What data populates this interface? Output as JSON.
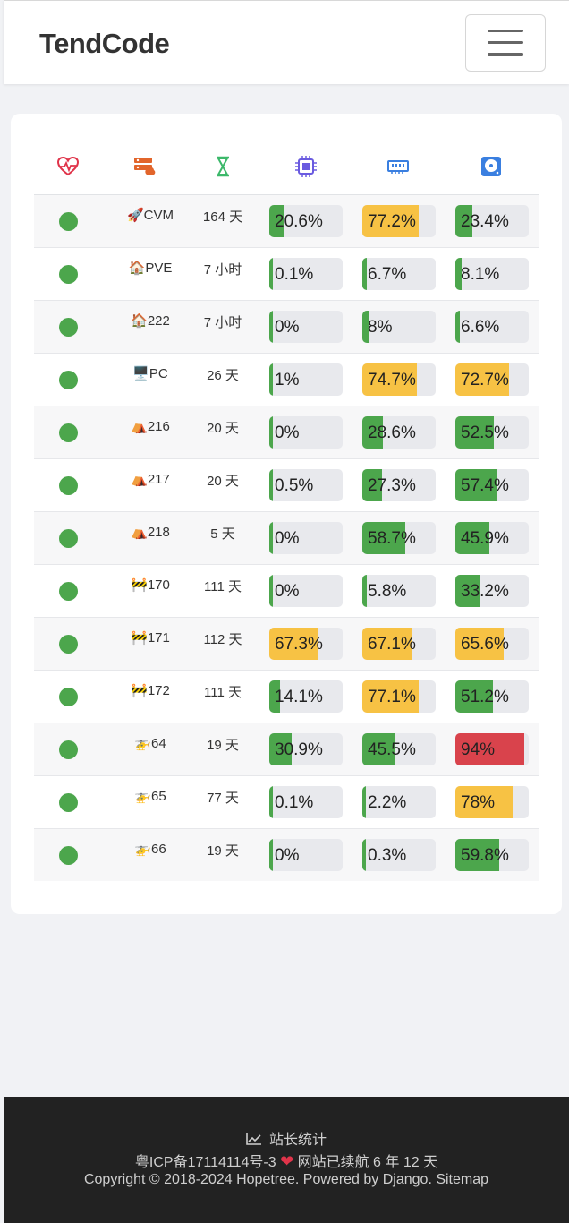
{
  "navbar": {
    "brand": "TendCode",
    "menu_icon": "hamburger-icon"
  },
  "table": {
    "header_icons": [
      "heartbeat-icon",
      "server-icon",
      "hourglass-icon",
      "cpu-icon",
      "memory-icon",
      "disk-icon"
    ],
    "header_colors": [
      "#e0344a",
      "#e2652b",
      "#3cb86a",
      "#6a5be0",
      "#3a7fe0",
      "#3a7fe0"
    ],
    "rows": [
      {
        "emoji": "🚀",
        "name": "CVM",
        "uptime": "164 天",
        "cpu": 20.6,
        "cpu_label": "20.6%",
        "mem": 77.2,
        "mem_label": "77.2%",
        "disk": 23.4,
        "disk_label": "23.4%"
      },
      {
        "emoji": "🏠",
        "name": "PVE",
        "uptime": "7 小时",
        "cpu": 0.1,
        "cpu_label": "0.1%",
        "mem": 6.7,
        "mem_label": "6.7%",
        "disk": 8.1,
        "disk_label": "8.1%"
      },
      {
        "emoji": "🏠",
        "name": "222",
        "uptime": "7 小时",
        "cpu": 0,
        "cpu_label": "0%",
        "mem": 8,
        "mem_label": "8%",
        "disk": 6.6,
        "disk_label": "6.6%"
      },
      {
        "emoji": "🖥️",
        "name": "PC",
        "uptime": "26 天",
        "cpu": 1,
        "cpu_label": "1%",
        "mem": 74.7,
        "mem_label": "74.7%",
        "disk": 72.7,
        "disk_label": "72.7%"
      },
      {
        "emoji": "⛺",
        "name": "216",
        "uptime": "20 天",
        "cpu": 0,
        "cpu_label": "0%",
        "mem": 28.6,
        "mem_label": "28.6%",
        "disk": 52.5,
        "disk_label": "52.5%"
      },
      {
        "emoji": "⛺",
        "name": "217",
        "uptime": "20 天",
        "cpu": 0.5,
        "cpu_label": "0.5%",
        "mem": 27.3,
        "mem_label": "27.3%",
        "disk": 57.4,
        "disk_label": "57.4%"
      },
      {
        "emoji": "⛺",
        "name": "218",
        "uptime": "5 天",
        "cpu": 0,
        "cpu_label": "0%",
        "mem": 58.7,
        "mem_label": "58.7%",
        "disk": 45.9,
        "disk_label": "45.9%"
      },
      {
        "emoji": "🚧",
        "name": "170",
        "uptime": "111 天",
        "cpu": 0,
        "cpu_label": "0%",
        "mem": 5.8,
        "mem_label": "5.8%",
        "disk": 33.2,
        "disk_label": "33.2%"
      },
      {
        "emoji": "🚧",
        "name": "171",
        "uptime": "112 天",
        "cpu": 67.3,
        "cpu_label": "67.3%",
        "mem": 67.1,
        "mem_label": "67.1%",
        "disk": 65.6,
        "disk_label": "65.6%"
      },
      {
        "emoji": "🚧",
        "name": "172",
        "uptime": "111 天",
        "cpu": 14.1,
        "cpu_label": "14.1%",
        "mem": 77.1,
        "mem_label": "77.1%",
        "disk": 51.2,
        "disk_label": "51.2%"
      },
      {
        "emoji": "🚁",
        "name": "64",
        "uptime": "19 天",
        "cpu": 30.9,
        "cpu_label": "30.9%",
        "mem": 45.5,
        "mem_label": "45.5%",
        "disk": 94,
        "disk_label": "94%"
      },
      {
        "emoji": "🚁",
        "name": "65",
        "uptime": "77 天",
        "cpu": 0.1,
        "cpu_label": "0.1%",
        "mem": 2.2,
        "mem_label": "2.2%",
        "disk": 78,
        "disk_label": "78%"
      },
      {
        "emoji": "🚁",
        "name": "66",
        "uptime": "19 天",
        "cpu": 0,
        "cpu_label": "0%",
        "mem": 0.3,
        "mem_label": "0.3%",
        "disk": 59.8,
        "disk_label": "59.8%"
      }
    ]
  },
  "colors": {
    "ok": "#4ca64c",
    "warn": "#f7c244",
    "danger": "#d9434c",
    "track": "#e8e9ed",
    "status_online": "#4ca64c"
  },
  "footer": {
    "stats_label": "站长统计",
    "icp": "粤ICP备17114114号-3",
    "uptime_text": "网站已续航 6 年 12 天",
    "copyright": "Copyright © 2018-2024 Hopetree. Powered by Django. Sitemap"
  }
}
